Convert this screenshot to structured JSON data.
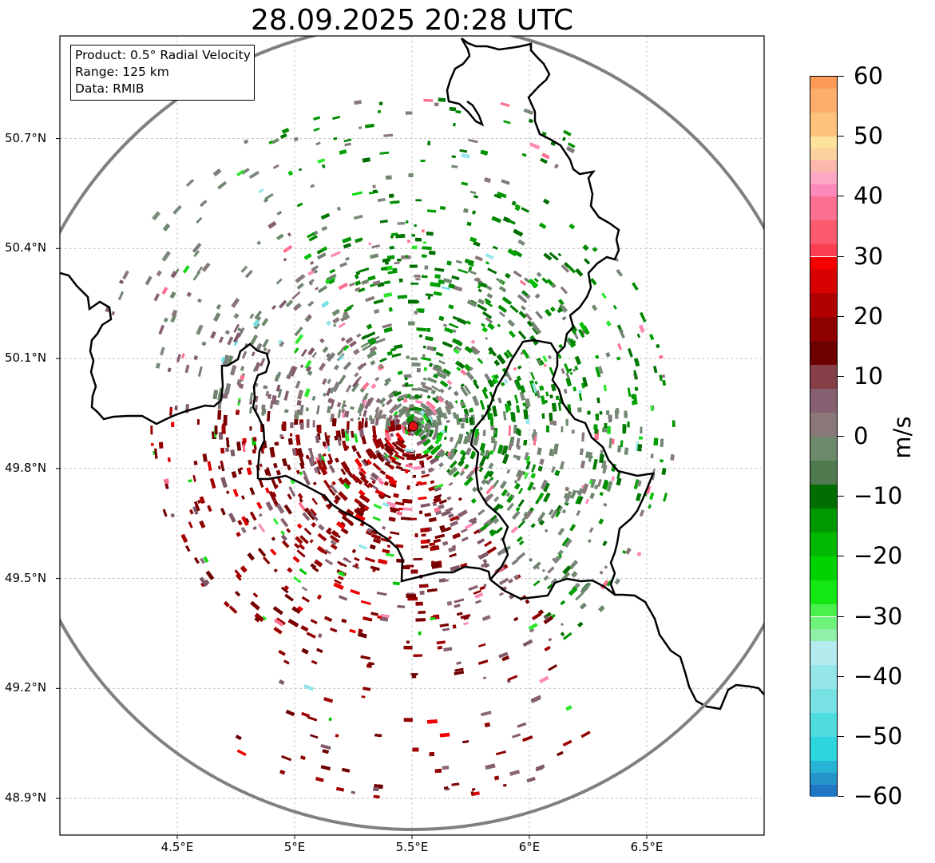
{
  "title": "28.09.2025 20:28 UTC",
  "info_box": {
    "line1": "Product: 0.5° Radial Velocity",
    "line2": "Range: 125 km",
    "line3": "Data: RMIB"
  },
  "map": {
    "lon_range": [
      4.0,
      7.0
    ],
    "lat_range": [
      48.8,
      50.98
    ],
    "lat_ticks": [
      {
        "value": 50.7,
        "label": "50.7°N"
      },
      {
        "value": 50.4,
        "label": "50.4°N"
      },
      {
        "value": 50.1,
        "label": "50.1°N"
      },
      {
        "value": 49.8,
        "label": "49.8°N"
      },
      {
        "value": 49.5,
        "label": "49.5°N"
      },
      {
        "value": 49.2,
        "label": "49.2°N"
      },
      {
        "value": 48.9,
        "label": "48.9°N"
      }
    ],
    "lon_ticks": [
      {
        "value": 4.5,
        "label": "4.5°E"
      },
      {
        "value": 5.0,
        "label": "5°E"
      },
      {
        "value": 5.5,
        "label": "5.5°E"
      },
      {
        "value": 6.0,
        "label": "6°E"
      },
      {
        "value": 6.5,
        "label": "6.5°E"
      }
    ],
    "radar_site": {
      "lon": 5.505,
      "lat": 49.915,
      "color": "#dd1111"
    },
    "range_ring_km": 125,
    "ring_color": "#808080",
    "border_color": "#000000"
  },
  "colorbar": {
    "unit": "m/s",
    "min": -60,
    "max": 60,
    "ticks": [
      {
        "value": 60,
        "label": "60"
      },
      {
        "value": 50,
        "label": "50"
      },
      {
        "value": 40,
        "label": "40"
      },
      {
        "value": 30,
        "label": "30"
      },
      {
        "value": 20,
        "label": "20"
      },
      {
        "value": 10,
        "label": "10"
      },
      {
        "value": 0,
        "label": "0"
      },
      {
        "value": -10,
        "label": "−10"
      },
      {
        "value": -20,
        "label": "−20"
      },
      {
        "value": -30,
        "label": "−30"
      },
      {
        "value": -40,
        "label": "−40"
      },
      {
        "value": -50,
        "label": "−50"
      },
      {
        "value": -60,
        "label": "−60"
      }
    ],
    "stops": [
      {
        "from": -60,
        "to": -58,
        "color": "#1f77c4"
      },
      {
        "from": -58,
        "to": -56,
        "color": "#2596cc"
      },
      {
        "from": -56,
        "to": -54,
        "color": "#27b3d6"
      },
      {
        "from": -54,
        "to": -50,
        "color": "#2dd6dc"
      },
      {
        "from": -50,
        "to": -46,
        "color": "#4fdcdf"
      },
      {
        "from": -46,
        "to": -42,
        "color": "#77e1e3"
      },
      {
        "from": -42,
        "to": -38,
        "color": "#95e6e8"
      },
      {
        "from": -38,
        "to": -34,
        "color": "#b5ebee"
      },
      {
        "from": -34,
        "to": -32,
        "color": "#90f0a8"
      },
      {
        "from": -32,
        "to": -30,
        "color": "#6ef27c"
      },
      {
        "from": -30,
        "to": -28,
        "color": "#4cf04c"
      },
      {
        "from": -28,
        "to": -24,
        "color": "#14e814"
      },
      {
        "from": -24,
        "to": -20,
        "color": "#00d300"
      },
      {
        "from": -20,
        "to": -16,
        "color": "#00b800"
      },
      {
        "from": -16,
        "to": -12,
        "color": "#009800"
      },
      {
        "from": -12,
        "to": -8,
        "color": "#006e00"
      },
      {
        "from": -8,
        "to": -4,
        "color": "#4f7a4f"
      },
      {
        "from": -4,
        "to": 0,
        "color": "#6d8a6d"
      },
      {
        "from": 0,
        "to": 4,
        "color": "#8a7878"
      },
      {
        "from": 4,
        "to": 8,
        "color": "#866070"
      },
      {
        "from": 8,
        "to": 12,
        "color": "#853f46"
      },
      {
        "from": 12,
        "to": 16,
        "color": "#6e0000"
      },
      {
        "from": 16,
        "to": 20,
        "color": "#8f0000"
      },
      {
        "from": 20,
        "to": 24,
        "color": "#b00000"
      },
      {
        "from": 24,
        "to": 28,
        "color": "#d80000"
      },
      {
        "from": 28,
        "to": 30,
        "color": "#f50000"
      },
      {
        "from": 30,
        "to": 32,
        "color": "#fa3d50"
      },
      {
        "from": 32,
        "to": 36,
        "color": "#fc5a6e"
      },
      {
        "from": 36,
        "to": 40,
        "color": "#fd6f90"
      },
      {
        "from": 40,
        "to": 42,
        "color": "#fd8ab8"
      },
      {
        "from": 42,
        "to": 44,
        "color": "#fca8c4"
      },
      {
        "from": 44,
        "to": 46,
        "color": "#fbb6ae"
      },
      {
        "from": 46,
        "to": 48,
        "color": "#fdd09f"
      },
      {
        "from": 48,
        "to": 50,
        "color": "#fde29c"
      },
      {
        "from": 50,
        "to": 54,
        "color": "#fdc27c"
      },
      {
        "from": 54,
        "to": 58,
        "color": "#fdae6a"
      },
      {
        "from": 58,
        "to": 60,
        "color": "#fd9a5a"
      }
    ]
  }
}
